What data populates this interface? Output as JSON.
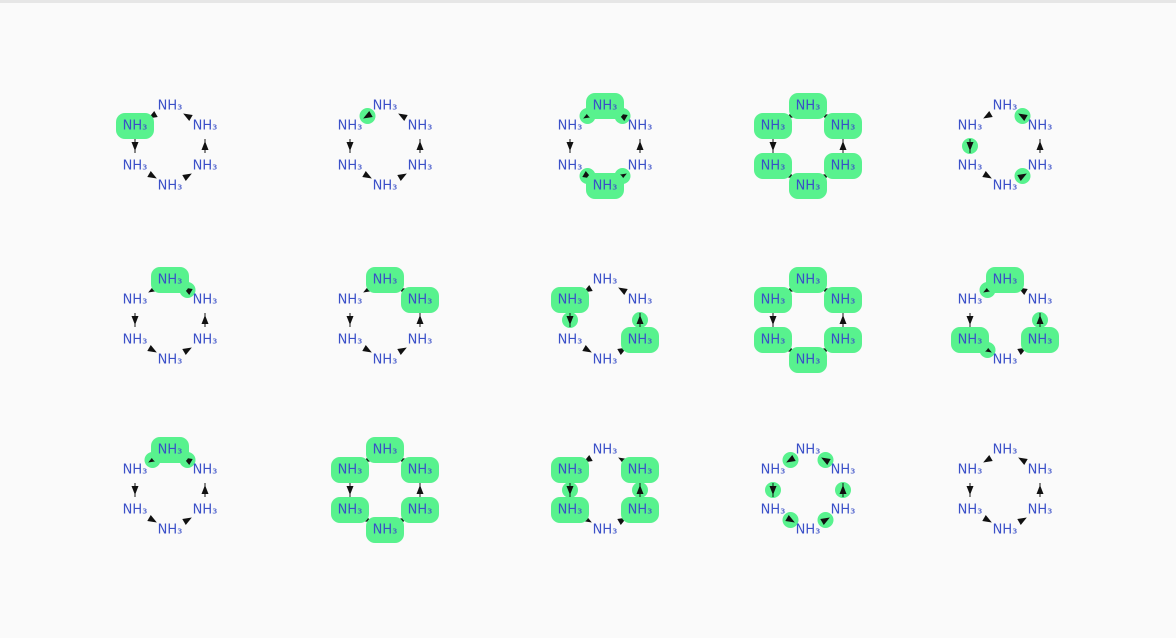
{
  "structures": [
    {
      "nodes": [
        "NH₃",
        "NH₃",
        "NH₃",
        "NH₃",
        "NH₃",
        "NH₃"
      ]
    },
    {
      "nodes": [
        "NH₃",
        "NH₃",
        "NH₃",
        "NH₃",
        "NH₃",
        "NH₃"
      ]
    },
    {
      "nodes": [
        "NH₃",
        "NH₃",
        "NH₃",
        "NH₃",
        "NH₃",
        "NH₃"
      ]
    },
    {
      "nodes": [
        "NH₃",
        "NH₃",
        "NH₃",
        "NH₃",
        "NH₃",
        "NH₃"
      ]
    },
    {
      "nodes": [
        "NH₃",
        "NH₃",
        "NH₃",
        "NH₃",
        "NH₃",
        "NH₃"
      ]
    },
    {
      "nodes": [
        "NH₃",
        "NH₃",
        "NH₃",
        "NH₃",
        "NH₃",
        "NH₃"
      ]
    },
    {
      "nodes": [
        "NH₃",
        "NH₃",
        "NH₃",
        "NH₃",
        "NH₃",
        "NH₃"
      ]
    },
    {
      "nodes": [
        "NH₃",
        "NH₃",
        "NH₃",
        "NH₃",
        "NH₃",
        "NH₃"
      ]
    },
    {
      "nodes": [
        "NH₃",
        "NH₃",
        "NH₃",
        "NH₃",
        "NH₃",
        "NH₃"
      ]
    },
    {
      "nodes": [
        "NH₃",
        "NH₃",
        "NH₃",
        "NH₃",
        "NH₃",
        "NH₃"
      ]
    },
    {
      "nodes": [
        "NH₃",
        "NH₃",
        "NH₃",
        "NH₃",
        "NH₃",
        "NH₃"
      ]
    },
    {
      "nodes": [
        "NH₃",
        "NH₃",
        "NH₃",
        "NH₃",
        "NH₃",
        "NH₃"
      ]
    },
    {
      "nodes": [
        "NH₃",
        "NH₃",
        "NH₃",
        "NH₃",
        "NH₃",
        "NH₃"
      ]
    },
    {
      "nodes": [
        "NH₃",
        "NH₃",
        "NH₃",
        "NH₃",
        "NH₃",
        "NH₃"
      ]
    },
    {
      "nodes": [
        "NH₃",
        "NH₃",
        "NH₃",
        "NH₃",
        "NH₃",
        "NH₃"
      ]
    }
  ]
}
